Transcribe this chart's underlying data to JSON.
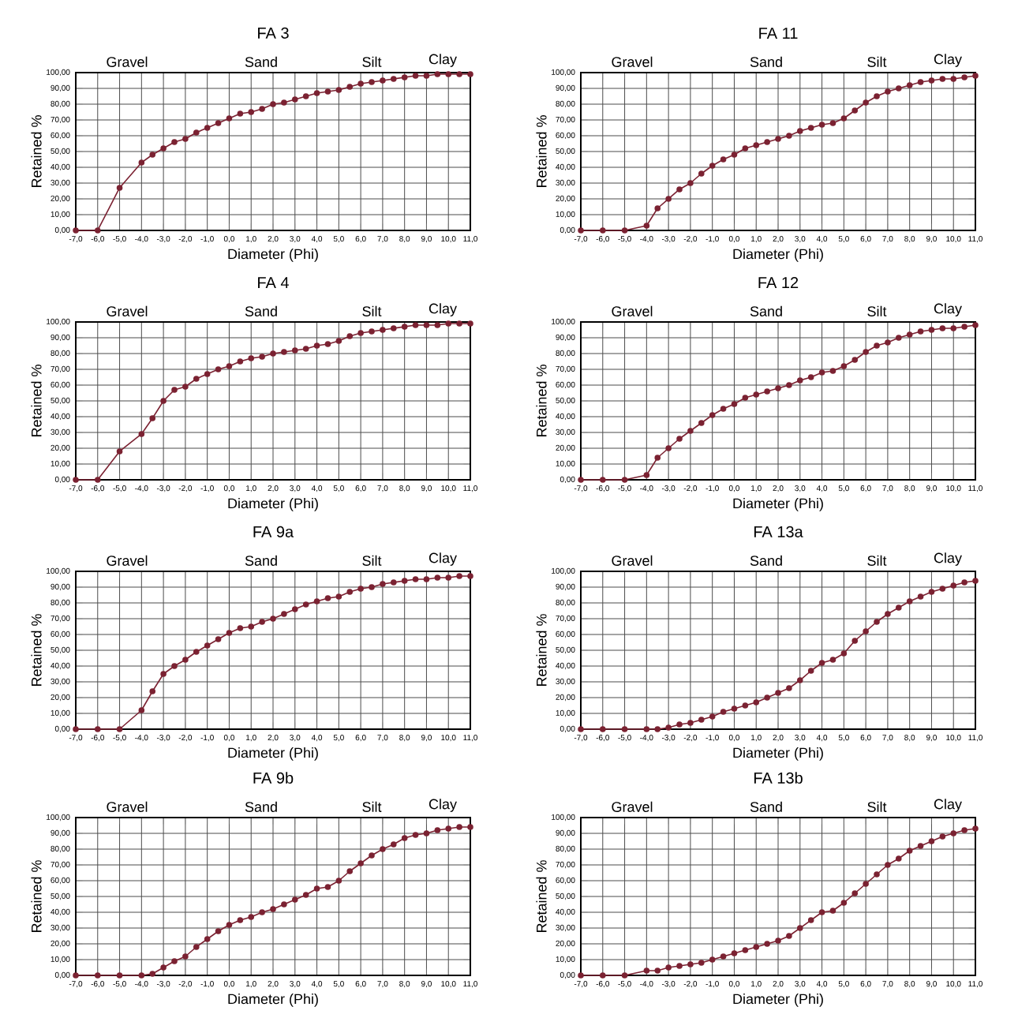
{
  "chart_data": [
    {
      "type": "line",
      "title": "FA 3",
      "xlabel": "Diameter (Phi)",
      "ylabel": "Retained %",
      "annotations": [
        "Gravel",
        "Sand",
        "Silt",
        "Clay"
      ],
      "grid": true,
      "marker": "circle",
      "color": "#7b2232",
      "xlim": [
        -7,
        11
      ],
      "ylim": [
        0,
        100
      ],
      "xticks": [
        {
          "value": -7,
          "label": "-7,0"
        },
        {
          "value": -6,
          "label": "-6,0"
        },
        {
          "value": -5,
          "label": "-5,0"
        },
        {
          "value": -4,
          "label": "-4,0"
        },
        {
          "value": -3,
          "label": "-3,0"
        },
        {
          "value": -2,
          "label": "-2,0"
        },
        {
          "value": -1,
          "label": "-1,0"
        },
        {
          "value": 0,
          "label": "0,0"
        },
        {
          "value": 1,
          "label": "1,0"
        },
        {
          "value": 2,
          "label": "2,0"
        },
        {
          "value": 3,
          "label": "3,0"
        },
        {
          "value": 4,
          "label": "4,0"
        },
        {
          "value": 5,
          "label": "5,0"
        },
        {
          "value": 6,
          "label": "6,0"
        },
        {
          "value": 7,
          "label": "7,0"
        },
        {
          "value": 8,
          "label": "8,0"
        },
        {
          "value": 9,
          "label": "9,0"
        },
        {
          "value": 10,
          "label": "10,0"
        },
        {
          "value": 11,
          "label": "11,0"
        }
      ],
      "yticks": [
        {
          "value": 0,
          "label": "0,00"
        },
        {
          "value": 10,
          "label": "10,00"
        },
        {
          "value": 20,
          "label": "20,00"
        },
        {
          "value": 30,
          "label": "30,00"
        },
        {
          "value": 40,
          "label": "40,00"
        },
        {
          "value": 50,
          "label": "50,00"
        },
        {
          "value": 60,
          "label": "60,00"
        },
        {
          "value": 70,
          "label": "70,00"
        },
        {
          "value": 80,
          "label": "80,00"
        },
        {
          "value": 90,
          "label": "90,00"
        },
        {
          "value": 100,
          "label": "100,00"
        }
      ],
      "x": [
        -7,
        -6,
        -5,
        -4,
        -3.5,
        -3,
        -2.5,
        -2,
        -1.5,
        -1,
        -0.5,
        0,
        0.5,
        1,
        1.5,
        2,
        2.5,
        3,
        3.5,
        4,
        4.5,
        5,
        5.5,
        6,
        6.5,
        7,
        7.5,
        8,
        8.5,
        9,
        9.5,
        10,
        10.5,
        11
      ],
      "values": [
        0,
        0,
        27,
        43,
        48,
        52,
        56,
        58,
        62,
        65,
        68,
        71,
        74,
        75,
        77,
        80,
        81,
        83,
        85,
        87,
        88,
        89,
        91,
        93,
        94,
        95,
        96,
        97,
        98,
        98,
        99,
        99,
        99,
        99
      ]
    },
    {
      "type": "line",
      "title": "FA 11",
      "xlabel": "Diameter (Phi)",
      "ylabel": "Retained %",
      "annotations": [
        "Gravel",
        "Sand",
        "Silt",
        "Clay"
      ],
      "grid": true,
      "marker": "circle",
      "color": "#7b2232",
      "xlim": [
        -7,
        11
      ],
      "ylim": [
        0,
        100
      ],
      "xticks": [
        {
          "value": -7,
          "label": "-7,0"
        },
        {
          "value": -6,
          "label": "-6,0"
        },
        {
          "value": -5,
          "label": "-5,0"
        },
        {
          "value": -4,
          "label": "-4,0"
        },
        {
          "value": -3,
          "label": "-3,0"
        },
        {
          "value": -2,
          "label": "-2,0"
        },
        {
          "value": -1,
          "label": "-1,0"
        },
        {
          "value": 0,
          "label": "0,0"
        },
        {
          "value": 1,
          "label": "1,0"
        },
        {
          "value": 2,
          "label": "2,0"
        },
        {
          "value": 3,
          "label": "3,0"
        },
        {
          "value": 4,
          "label": "4,0"
        },
        {
          "value": 5,
          "label": "5,0"
        },
        {
          "value": 6,
          "label": "6,0"
        },
        {
          "value": 7,
          "label": "7,0"
        },
        {
          "value": 8,
          "label": "8,0"
        },
        {
          "value": 9,
          "label": "9,0"
        },
        {
          "value": 10,
          "label": "10,0"
        },
        {
          "value": 11,
          "label": "11,0"
        }
      ],
      "yticks": [
        {
          "value": 0,
          "label": "0,00"
        },
        {
          "value": 10,
          "label": "10,00"
        },
        {
          "value": 20,
          "label": "20,00"
        },
        {
          "value": 30,
          "label": "30,00"
        },
        {
          "value": 40,
          "label": "40,00"
        },
        {
          "value": 50,
          "label": "50,00"
        },
        {
          "value": 60,
          "label": "60,00"
        },
        {
          "value": 70,
          "label": "70,00"
        },
        {
          "value": 80,
          "label": "80,00"
        },
        {
          "value": 90,
          "label": "90,00"
        },
        {
          "value": 100,
          "label": "100,00"
        }
      ],
      "x": [
        -7,
        -6,
        -5,
        -4,
        -3.5,
        -3,
        -2.5,
        -2,
        -1.5,
        -1,
        -0.5,
        0,
        0.5,
        1,
        1.5,
        2,
        2.5,
        3,
        3.5,
        4,
        4.5,
        5,
        5.5,
        6,
        6.5,
        7,
        7.5,
        8,
        8.5,
        9,
        9.5,
        10,
        10.5,
        11
      ],
      "values": [
        0,
        0,
        0,
        3,
        14,
        20,
        26,
        30,
        36,
        41,
        45,
        48,
        52,
        54,
        56,
        58,
        60,
        63,
        65,
        67,
        68,
        71,
        76,
        81,
        85,
        88,
        90,
        92,
        94,
        95,
        96,
        96,
        97,
        98
      ]
    },
    {
      "type": "line",
      "title": "FA 4",
      "xlabel": "Diameter (Phi)",
      "ylabel": "Retained %",
      "annotations": [
        "Gravel",
        "Sand",
        "Silt",
        "Clay"
      ],
      "grid": true,
      "marker": "circle",
      "color": "#7b2232",
      "xlim": [
        -7,
        11
      ],
      "ylim": [
        0,
        100
      ],
      "xticks": [
        {
          "value": -7,
          "label": "-7,0"
        },
        {
          "value": -6,
          "label": "-6,0"
        },
        {
          "value": -5,
          "label": "-5,0"
        },
        {
          "value": -4,
          "label": "-4,0"
        },
        {
          "value": -3,
          "label": "-3,0"
        },
        {
          "value": -2,
          "label": "-2,0"
        },
        {
          "value": -1,
          "label": "-1,0"
        },
        {
          "value": 0,
          "label": "0,0"
        },
        {
          "value": 1,
          "label": "1,0"
        },
        {
          "value": 2,
          "label": "2,0"
        },
        {
          "value": 3,
          "label": "3,0"
        },
        {
          "value": 4,
          "label": "4,0"
        },
        {
          "value": 5,
          "label": "5,0"
        },
        {
          "value": 6,
          "label": "6,0"
        },
        {
          "value": 7,
          "label": "7,0"
        },
        {
          "value": 8,
          "label": "8,0"
        },
        {
          "value": 9,
          "label": "9,0"
        },
        {
          "value": 10,
          "label": "10,0"
        },
        {
          "value": 11,
          "label": "11,0"
        }
      ],
      "yticks": [
        {
          "value": 0,
          "label": "0,00"
        },
        {
          "value": 10,
          "label": "10,00"
        },
        {
          "value": 20,
          "label": "20,00"
        },
        {
          "value": 30,
          "label": "30,00"
        },
        {
          "value": 40,
          "label": "40,00"
        },
        {
          "value": 50,
          "label": "50,00"
        },
        {
          "value": 60,
          "label": "60,00"
        },
        {
          "value": 70,
          "label": "70,00"
        },
        {
          "value": 80,
          "label": "80,00"
        },
        {
          "value": 90,
          "label": "90,00"
        },
        {
          "value": 100,
          "label": "100,00"
        }
      ],
      "x": [
        -7,
        -6,
        -5,
        -4,
        -3.5,
        -3,
        -2.5,
        -2,
        -1.5,
        -1,
        -0.5,
        0,
        0.5,
        1,
        1.5,
        2,
        2.5,
        3,
        3.5,
        4,
        4.5,
        5,
        5.5,
        6,
        6.5,
        7,
        7.5,
        8,
        8.5,
        9,
        9.5,
        10,
        10.5,
        11
      ],
      "values": [
        0,
        0,
        18,
        29,
        39,
        50,
        57,
        59,
        64,
        67,
        70,
        72,
        75,
        77,
        78,
        80,
        81,
        82,
        83,
        85,
        86,
        88,
        91,
        93,
        94,
        95,
        96,
        97,
        98,
        98,
        98,
        99,
        99,
        99
      ]
    },
    {
      "type": "line",
      "title": "FA 12",
      "xlabel": "Diameter (Phi)",
      "ylabel": "Retained %",
      "annotations": [
        "Gravel",
        "Sand",
        "Silt",
        "Clay"
      ],
      "grid": true,
      "marker": "circle",
      "color": "#7b2232",
      "xlim": [
        -7,
        11
      ],
      "ylim": [
        0,
        100
      ],
      "xticks": [
        {
          "value": -7,
          "label": "-7,0"
        },
        {
          "value": -6,
          "label": "-6,0"
        },
        {
          "value": -5,
          "label": "-5,0"
        },
        {
          "value": -4,
          "label": "-4,0"
        },
        {
          "value": -3,
          "label": "-3,0"
        },
        {
          "value": -2,
          "label": "-2,0"
        },
        {
          "value": -1,
          "label": "-1,0"
        },
        {
          "value": 0,
          "label": "0,0"
        },
        {
          "value": 1,
          "label": "1,0"
        },
        {
          "value": 2,
          "label": "2,0"
        },
        {
          "value": 3,
          "label": "3,0"
        },
        {
          "value": 4,
          "label": "4,0"
        },
        {
          "value": 5,
          "label": "5,0"
        },
        {
          "value": 6,
          "label": "6,0"
        },
        {
          "value": 7,
          "label": "7,0"
        },
        {
          "value": 8,
          "label": "8,0"
        },
        {
          "value": 9,
          "label": "9,0"
        },
        {
          "value": 10,
          "label": "10,0"
        },
        {
          "value": 11,
          "label": "11,0"
        }
      ],
      "yticks": [
        {
          "value": 0,
          "label": "0,00"
        },
        {
          "value": 10,
          "label": "10,00"
        },
        {
          "value": 20,
          "label": "20,00"
        },
        {
          "value": 30,
          "label": "30,00"
        },
        {
          "value": 40,
          "label": "40,00"
        },
        {
          "value": 50,
          "label": "50,00"
        },
        {
          "value": 60,
          "label": "60,00"
        },
        {
          "value": 70,
          "label": "70,00"
        },
        {
          "value": 80,
          "label": "80,00"
        },
        {
          "value": 90,
          "label": "90,00"
        },
        {
          "value": 100,
          "label": "100,00"
        }
      ],
      "x": [
        -7,
        -6,
        -5,
        -4,
        -3.5,
        -3,
        -2.5,
        -2,
        -1.5,
        -1,
        -0.5,
        0,
        0.5,
        1,
        1.5,
        2,
        2.5,
        3,
        3.5,
        4,
        4.5,
        5,
        5.5,
        6,
        6.5,
        7,
        7.5,
        8,
        8.5,
        9,
        9.5,
        10,
        10.5,
        11
      ],
      "values": [
        0,
        0,
        0,
        3,
        14,
        20,
        26,
        31,
        36,
        41,
        45,
        48,
        52,
        54,
        56,
        58,
        60,
        63,
        65,
        68,
        69,
        72,
        76,
        81,
        85,
        87,
        90,
        92,
        94,
        95,
        96,
        96,
        97,
        98
      ]
    },
    {
      "type": "line",
      "title": "FA 9a",
      "xlabel": "Diameter (Phi)",
      "ylabel": "Retained %",
      "annotations": [
        "Gravel",
        "Sand",
        "Silt",
        "Clay"
      ],
      "grid": true,
      "marker": "circle",
      "color": "#7b2232",
      "xlim": [
        -7,
        11
      ],
      "ylim": [
        0,
        100
      ],
      "xticks": [
        {
          "value": -7,
          "label": "-7,0"
        },
        {
          "value": -6,
          "label": "-6,0"
        },
        {
          "value": -5,
          "label": "-5,0"
        },
        {
          "value": -4,
          "label": "-4,0"
        },
        {
          "value": -3,
          "label": "-3,0"
        },
        {
          "value": -2,
          "label": "-2,0"
        },
        {
          "value": -1,
          "label": "-1,0"
        },
        {
          "value": 0,
          "label": "0,0"
        },
        {
          "value": 1,
          "label": "1,0"
        },
        {
          "value": 2,
          "label": "2,0"
        },
        {
          "value": 3,
          "label": "3,0"
        },
        {
          "value": 4,
          "label": "4,0"
        },
        {
          "value": 5,
          "label": "5,0"
        },
        {
          "value": 6,
          "label": "6,0"
        },
        {
          "value": 7,
          "label": "7,0"
        },
        {
          "value": 8,
          "label": "8,0"
        },
        {
          "value": 9,
          "label": "9,0"
        },
        {
          "value": 10,
          "label": "10,0"
        },
        {
          "value": 11,
          "label": "11,0"
        }
      ],
      "yticks": [
        {
          "value": 0,
          "label": "0,00"
        },
        {
          "value": 10,
          "label": "10,00"
        },
        {
          "value": 20,
          "label": "20,00"
        },
        {
          "value": 30,
          "label": "30,00"
        },
        {
          "value": 40,
          "label": "40,00"
        },
        {
          "value": 50,
          "label": "50,00"
        },
        {
          "value": 60,
          "label": "60,00"
        },
        {
          "value": 70,
          "label": "70,00"
        },
        {
          "value": 80,
          "label": "80,00"
        },
        {
          "value": 90,
          "label": "90,00"
        },
        {
          "value": 100,
          "label": "100,00"
        }
      ],
      "x": [
        -7,
        -6,
        -5,
        -4,
        -3.5,
        -3,
        -2.5,
        -2,
        -1.5,
        -1,
        -0.5,
        0,
        0.5,
        1,
        1.5,
        2,
        2.5,
        3,
        3.5,
        4,
        4.5,
        5,
        5.5,
        6,
        6.5,
        7,
        7.5,
        8,
        8.5,
        9,
        9.5,
        10,
        10.5,
        11
      ],
      "values": [
        0,
        0,
        0,
        12,
        24,
        35,
        40,
        44,
        49,
        53,
        57,
        61,
        64,
        65,
        68,
        70,
        73,
        76,
        79,
        81,
        83,
        84,
        87,
        89,
        90,
        92,
        93,
        94,
        95,
        95,
        96,
        96,
        97,
        97
      ]
    },
    {
      "type": "line",
      "title": "FA 13a",
      "xlabel": "Diameter (Phi)",
      "ylabel": "Retained %",
      "annotations": [
        "Gravel",
        "Sand",
        "Silt",
        "Clay"
      ],
      "grid": true,
      "marker": "circle",
      "color": "#7b2232",
      "xlim": [
        -7,
        11
      ],
      "ylim": [
        0,
        100
      ],
      "xticks": [
        {
          "value": -7,
          "label": "-7,0"
        },
        {
          "value": -6,
          "label": "-6,0"
        },
        {
          "value": -5,
          "label": "-5,0"
        },
        {
          "value": -4,
          "label": "-4,0"
        },
        {
          "value": -3,
          "label": "-3,0"
        },
        {
          "value": -2,
          "label": "-2,0"
        },
        {
          "value": -1,
          "label": "-1,0"
        },
        {
          "value": 0,
          "label": "0,0"
        },
        {
          "value": 1,
          "label": "1,0"
        },
        {
          "value": 2,
          "label": "2,0"
        },
        {
          "value": 3,
          "label": "3,0"
        },
        {
          "value": 4,
          "label": "4,0"
        },
        {
          "value": 5,
          "label": "5,0"
        },
        {
          "value": 6,
          "label": "6,0"
        },
        {
          "value": 7,
          "label": "7,0"
        },
        {
          "value": 8,
          "label": "8,0"
        },
        {
          "value": 9,
          "label": "9,0"
        },
        {
          "value": 10,
          "label": "10,0"
        },
        {
          "value": 11,
          "label": "11,0"
        }
      ],
      "yticks": [
        {
          "value": 0,
          "label": "0,00"
        },
        {
          "value": 10,
          "label": "10,00"
        },
        {
          "value": 20,
          "label": "20,00"
        },
        {
          "value": 30,
          "label": "30,00"
        },
        {
          "value": 40,
          "label": "40,00"
        },
        {
          "value": 50,
          "label": "50,00"
        },
        {
          "value": 60,
          "label": "60,00"
        },
        {
          "value": 70,
          "label": "70,00"
        },
        {
          "value": 80,
          "label": "80,00"
        },
        {
          "value": 90,
          "label": "90,00"
        },
        {
          "value": 100,
          "label": "100,00"
        }
      ],
      "x": [
        -7,
        -6,
        -5,
        -4,
        -3.5,
        -3,
        -2.5,
        -2,
        -1.5,
        -1,
        -0.5,
        0,
        0.5,
        1,
        1.5,
        2,
        2.5,
        3,
        3.5,
        4,
        4.5,
        5,
        5.5,
        6,
        6.5,
        7,
        7.5,
        8,
        8.5,
        9,
        9.5,
        10,
        10.5,
        11
      ],
      "values": [
        0,
        0,
        0,
        0,
        0,
        1,
        3,
        4,
        6,
        8,
        11,
        13,
        15,
        17,
        20,
        23,
        26,
        31,
        37,
        42,
        44,
        48,
        56,
        62,
        68,
        73,
        77,
        81,
        84,
        87,
        89,
        91,
        93,
        94
      ]
    },
    {
      "type": "line",
      "title": "FA 9b",
      "xlabel": "Diameter (Phi)",
      "ylabel": "Retained %",
      "annotations": [
        "Gravel",
        "Sand",
        "Silt",
        "Clay"
      ],
      "grid": true,
      "marker": "circle",
      "color": "#7b2232",
      "xlim": [
        -7,
        11
      ],
      "ylim": [
        0,
        100
      ],
      "xticks": [
        {
          "value": -7,
          "label": "-7,0"
        },
        {
          "value": -6,
          "label": "-6,0"
        },
        {
          "value": -5,
          "label": "-5,0"
        },
        {
          "value": -4,
          "label": "-4,0"
        },
        {
          "value": -3,
          "label": "-3,0"
        },
        {
          "value": -2,
          "label": "-2,0"
        },
        {
          "value": -1,
          "label": "-1,0"
        },
        {
          "value": 0,
          "label": "0,0"
        },
        {
          "value": 1,
          "label": "1,0"
        },
        {
          "value": 2,
          "label": "2,0"
        },
        {
          "value": 3,
          "label": "3,0"
        },
        {
          "value": 4,
          "label": "4,0"
        },
        {
          "value": 5,
          "label": "5,0"
        },
        {
          "value": 6,
          "label": "6,0"
        },
        {
          "value": 7,
          "label": "7,0"
        },
        {
          "value": 8,
          "label": "8,0"
        },
        {
          "value": 9,
          "label": "9,0"
        },
        {
          "value": 10,
          "label": "10,0"
        },
        {
          "value": 11,
          "label": "11,0"
        }
      ],
      "yticks": [
        {
          "value": 0,
          "label": "0,00"
        },
        {
          "value": 10,
          "label": "10,00"
        },
        {
          "value": 20,
          "label": "20,00"
        },
        {
          "value": 30,
          "label": "30,00"
        },
        {
          "value": 40,
          "label": "40,00"
        },
        {
          "value": 50,
          "label": "50,00"
        },
        {
          "value": 60,
          "label": "60,00"
        },
        {
          "value": 70,
          "label": "70,00"
        },
        {
          "value": 80,
          "label": "80,00"
        },
        {
          "value": 90,
          "label": "90,00"
        },
        {
          "value": 100,
          "label": "100,00"
        }
      ],
      "x": [
        -7,
        -6,
        -5,
        -4,
        -3.5,
        -3,
        -2.5,
        -2,
        -1.5,
        -1,
        -0.5,
        0,
        0.5,
        1,
        1.5,
        2,
        2.5,
        3,
        3.5,
        4,
        4.5,
        5,
        5.5,
        6,
        6.5,
        7,
        7.5,
        8,
        8.5,
        9,
        9.5,
        10,
        10.5,
        11
      ],
      "values": [
        0,
        0,
        0,
        0,
        1,
        5,
        9,
        12,
        18,
        23,
        28,
        32,
        35,
        37,
        40,
        42,
        45,
        48,
        51,
        55,
        56,
        60,
        66,
        71,
        76,
        80,
        83,
        87,
        89,
        90,
        92,
        93,
        94,
        94
      ]
    },
    {
      "type": "line",
      "title": "FA 13b",
      "xlabel": "Diameter (Phi)",
      "ylabel": "Retained %",
      "annotations": [
        "Gravel",
        "Sand",
        "Silt",
        "Clay"
      ],
      "grid": true,
      "marker": "circle",
      "color": "#7b2232",
      "xlim": [
        -7,
        11
      ],
      "ylim": [
        0,
        100
      ],
      "xticks": [
        {
          "value": -7,
          "label": "-7,0"
        },
        {
          "value": -6,
          "label": "-6,0"
        },
        {
          "value": -5,
          "label": "-5,0"
        },
        {
          "value": -4,
          "label": "-4,0"
        },
        {
          "value": -3,
          "label": "-3,0"
        },
        {
          "value": -2,
          "label": "-2,0"
        },
        {
          "value": -1,
          "label": "-1,0"
        },
        {
          "value": 0,
          "label": "0,0"
        },
        {
          "value": 1,
          "label": "1,0"
        },
        {
          "value": 2,
          "label": "2,0"
        },
        {
          "value": 3,
          "label": "3,0"
        },
        {
          "value": 4,
          "label": "4,0"
        },
        {
          "value": 5,
          "label": "5,0"
        },
        {
          "value": 6,
          "label": "6,0"
        },
        {
          "value": 7,
          "label": "7,0"
        },
        {
          "value": 8,
          "label": "8,0"
        },
        {
          "value": 9,
          "label": "9,0"
        },
        {
          "value": 10,
          "label": "10,0"
        },
        {
          "value": 11,
          "label": "11,0"
        }
      ],
      "yticks": [
        {
          "value": 0,
          "label": "0,00"
        },
        {
          "value": 10,
          "label": "10,00"
        },
        {
          "value": 20,
          "label": "20,00"
        },
        {
          "value": 30,
          "label": "30,00"
        },
        {
          "value": 40,
          "label": "40,00"
        },
        {
          "value": 50,
          "label": "50,00"
        },
        {
          "value": 60,
          "label": "60,00"
        },
        {
          "value": 70,
          "label": "70,00"
        },
        {
          "value": 80,
          "label": "80,00"
        },
        {
          "value": 90,
          "label": "90,00"
        },
        {
          "value": 100,
          "label": "100,00"
        }
      ],
      "x": [
        -7,
        -6,
        -5,
        -4,
        -3.5,
        -3,
        -2.5,
        -2,
        -1.5,
        -1,
        -0.5,
        0,
        0.5,
        1,
        1.5,
        2,
        2.5,
        3,
        3.5,
        4,
        4.5,
        5,
        5.5,
        6,
        6.5,
        7,
        7.5,
        8,
        8.5,
        9,
        9.5,
        10,
        10.5,
        11
      ],
      "values": [
        0,
        0,
        0,
        3,
        3,
        5,
        6,
        7,
        8,
        10,
        12,
        14,
        16,
        18,
        20,
        22,
        25,
        30,
        35,
        40,
        41,
        46,
        52,
        58,
        64,
        70,
        74,
        79,
        82,
        85,
        88,
        90,
        92,
        93
      ]
    }
  ]
}
